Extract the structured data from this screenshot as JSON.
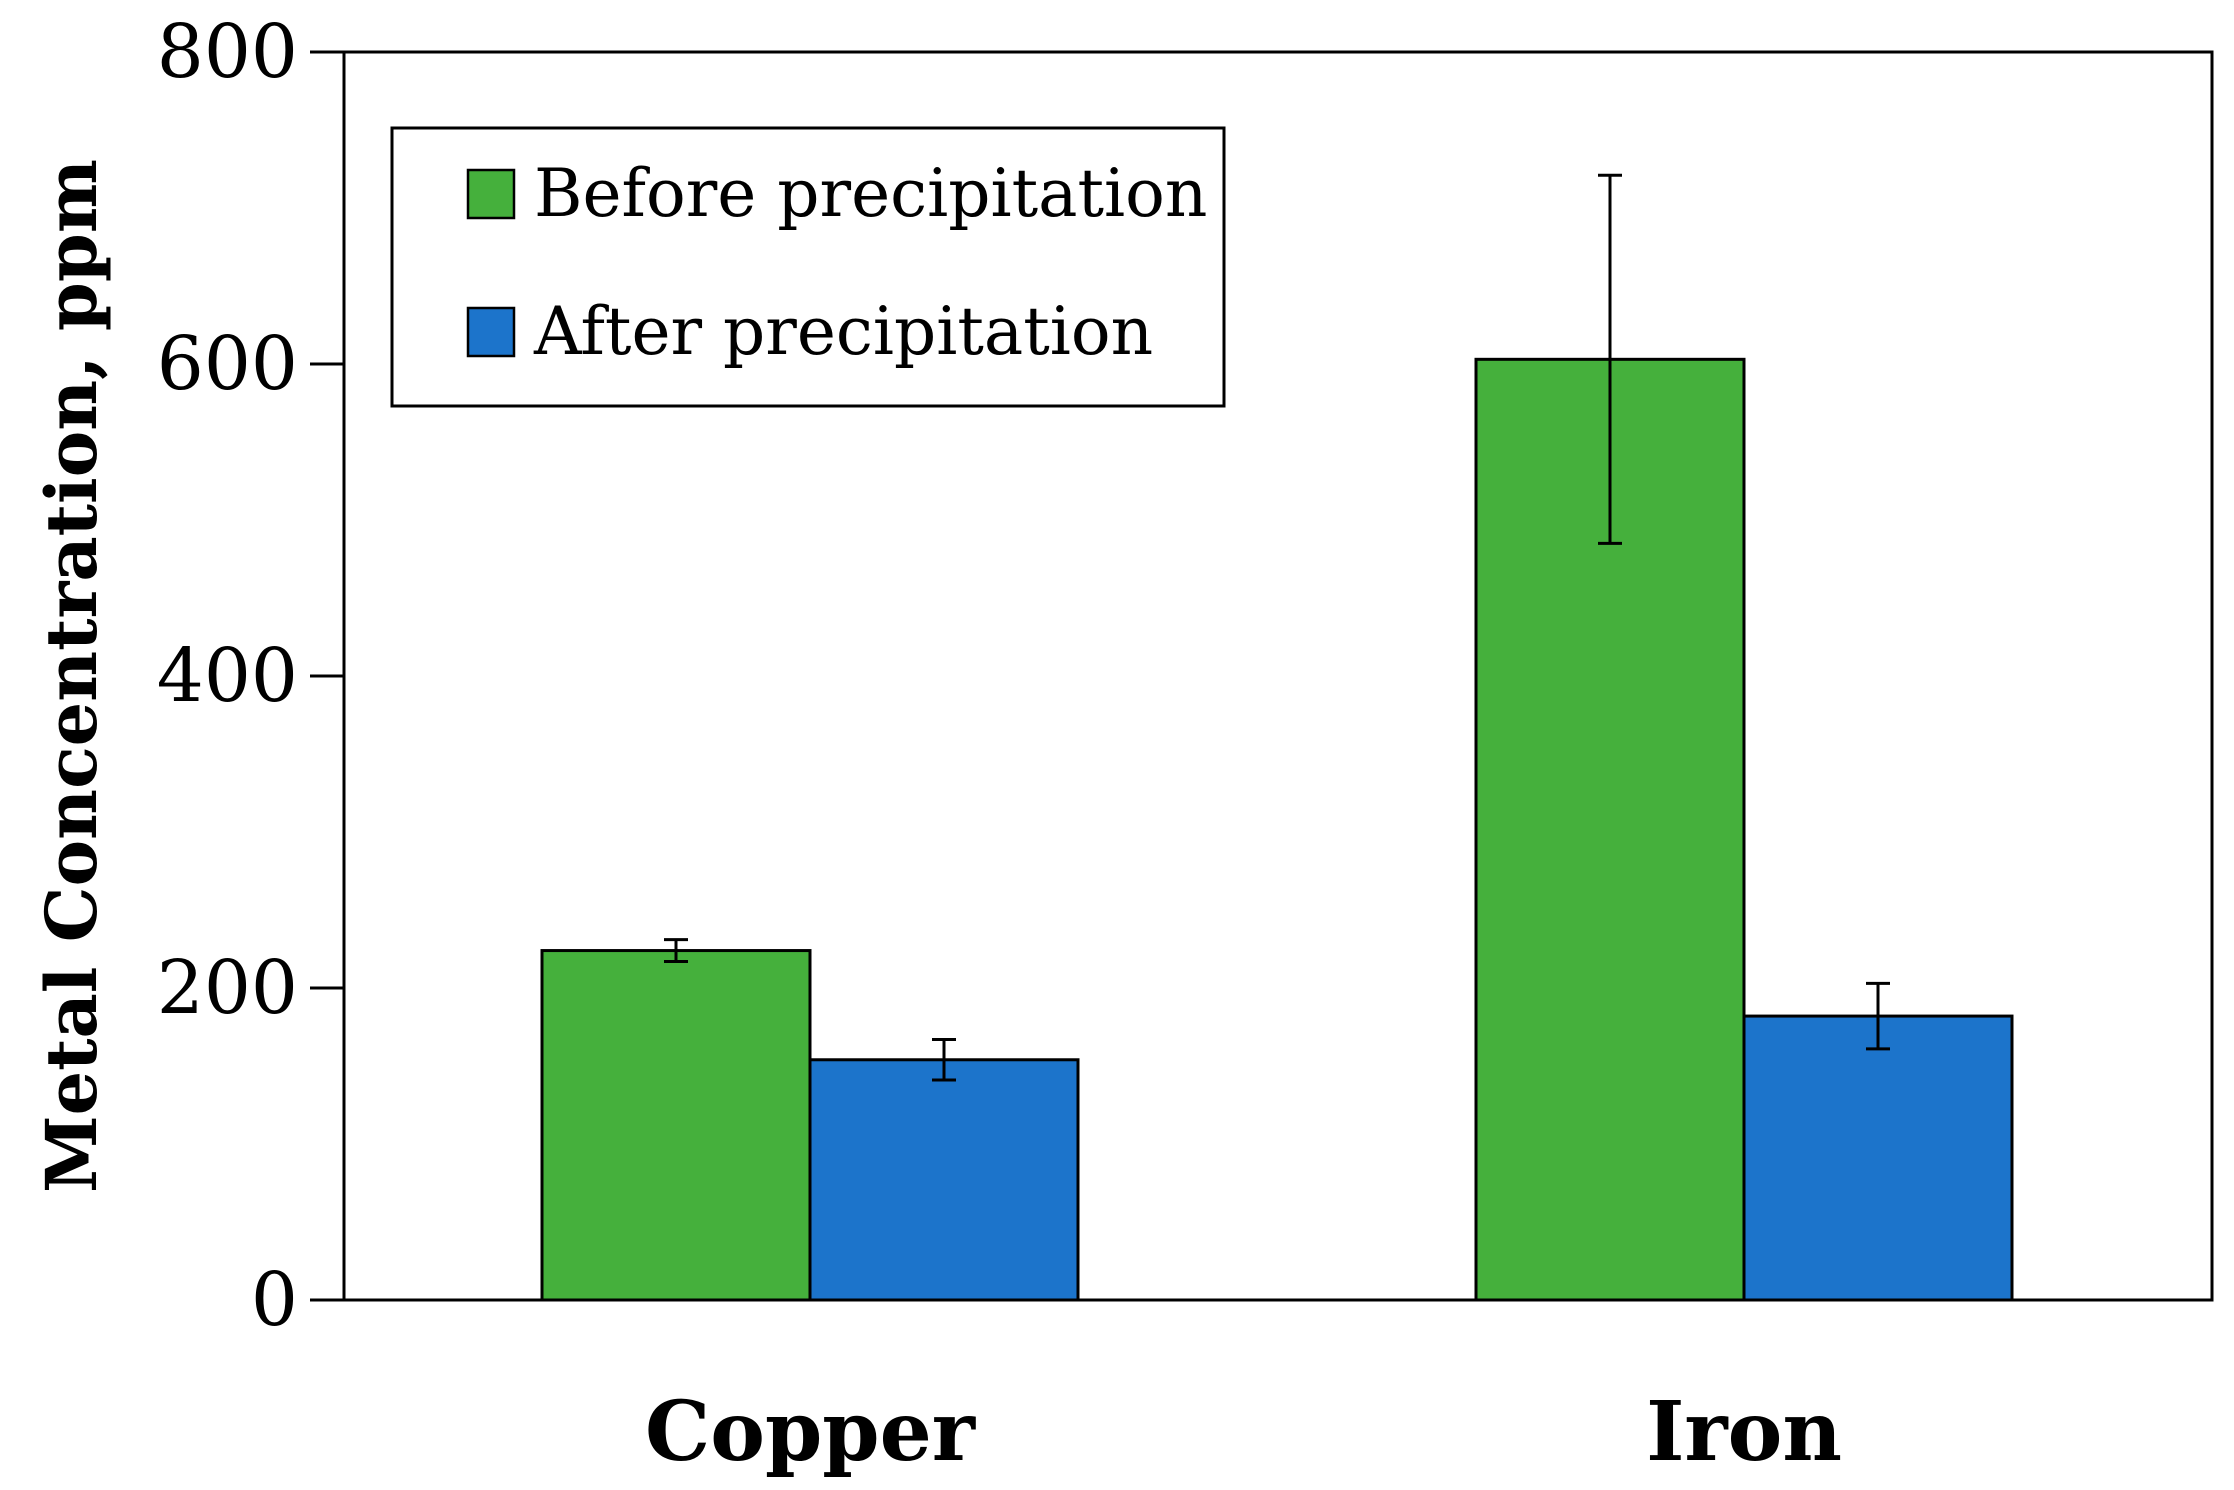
{
  "chart_data": {
    "type": "bar",
    "title": "",
    "xlabel": "",
    "ylabel": "Metal Concentration, ppm",
    "categories": [
      "Copper",
      "Iron"
    ],
    "series": [
      {
        "name": "Before precipitation",
        "color": "#45B03C",
        "values": [
          224,
          603
        ],
        "errors": [
          7,
          118
        ]
      },
      {
        "name": "After precipitation",
        "color": "#1C74CB",
        "values": [
          154,
          182
        ],
        "errors": [
          13,
          21
        ]
      }
    ],
    "ylim": [
      0,
      800
    ],
    "yticks": [
      0,
      200,
      400,
      600,
      800
    ],
    "grid": false,
    "legend_position": "top-left"
  }
}
